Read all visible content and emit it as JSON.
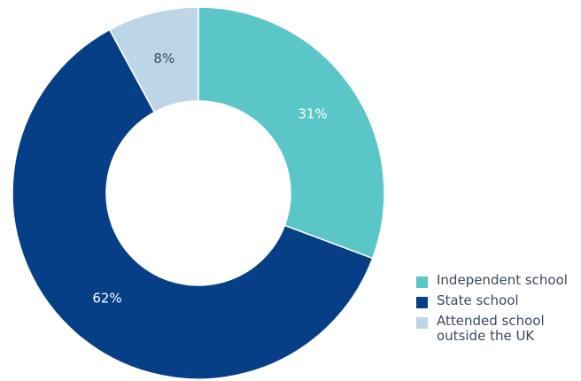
{
  "chart_data": {
    "type": "pie",
    "donut": true,
    "title": "",
    "legend_position": "bottom-right",
    "slices": [
      {
        "label": "Independent school",
        "value": 31,
        "display": "31%",
        "color": "#5bc6c8"
      },
      {
        "label": "State school",
        "value": 62,
        "display": "62%",
        "color": "#073f86"
      },
      {
        "label": "Attended school outside the UK",
        "value": 8,
        "display": "8%",
        "color": "#bed5e8"
      }
    ]
  },
  "legend": {
    "items": [
      {
        "label": "Independent school",
        "color": "#5bc6c8"
      },
      {
        "label": "State school",
        "color": "#073f86"
      },
      {
        "label": "Attended school outside the UK",
        "color": "#bed5e8"
      }
    ]
  }
}
